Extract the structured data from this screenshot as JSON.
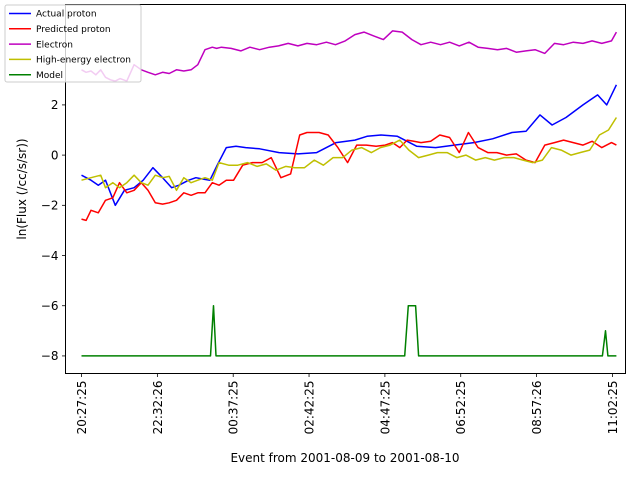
{
  "chart_data": {
    "type": "line",
    "xlabel": "Event from 2001-08-09 to 2001-08-10",
    "ylabel": "ln(Flux (/cc/s/sr))",
    "grid": false,
    "legend_position": "top-left",
    "xlim": [
      "2001-08-09 20:01:00",
      "2001-08-10 11:24:00"
    ],
    "ylim": [
      -8.7,
      6.0
    ],
    "x_ticks": [
      "20:27:25",
      "22:32:26",
      "00:37:25",
      "02:42:25",
      "04:47:25",
      "06:52:25",
      "08:57:26",
      "11:02:25"
    ],
    "y_ticks": [
      "-8",
      "-6",
      "-4",
      "-2",
      "0",
      "2"
    ],
    "series": [
      {
        "name": "Actual proton",
        "color": "#0000ff",
        "x": [
          "2001-08-09 20:27:25",
          "2001-08-09 20:43:00",
          "2001-08-09 20:55:00",
          "2001-08-09 21:07:00",
          "2001-08-09 21:15:00",
          "2001-08-09 21:23:00",
          "2001-08-09 21:38:00",
          "2001-08-09 21:54:00",
          "2001-08-09 22:09:00",
          "2001-08-09 22:25:00",
          "2001-08-09 22:41:00",
          "2001-08-09 22:56:00",
          "2001-08-09 23:08:00",
          "2001-08-09 23:24:00",
          "2001-08-09 23:36:00",
          "2001-08-09 23:47:00",
          "2001-08-09 23:59:00",
          "2001-08-10 00:11:00",
          "2001-08-10 00:26:00",
          "2001-08-10 00:42:00",
          "2001-08-10 00:58:00",
          "2001-08-10 01:21:00",
          "2001-08-10 01:53:00",
          "2001-08-10 02:24:00",
          "2001-08-10 02:55:00",
          "2001-08-10 03:27:00",
          "2001-08-10 03:58:00",
          "2001-08-10 04:18:00",
          "2001-08-10 04:41:00",
          "2001-08-10 05:08:00",
          "2001-08-10 05:40:00",
          "2001-08-10 06:11:00",
          "2001-08-10 06:42:00",
          "2001-08-10 07:14:00",
          "2001-08-10 07:45:00",
          "2001-08-10 08:17:00",
          "2001-08-10 08:40:00",
          "2001-08-10 09:03:00",
          "2001-08-10 09:23:00",
          "2001-08-10 09:46:00",
          "2001-08-10 10:14:00",
          "2001-08-10 10:38:00",
          "2001-08-10 10:53:00",
          "2001-08-10 11:09:00"
        ],
        "values": [
          -0.8,
          -1.0,
          -1.2,
          -1.0,
          -1.5,
          -2.0,
          -1.4,
          -1.3,
          -1.0,
          -0.5,
          -0.9,
          -1.3,
          -1.2,
          -1.0,
          -0.9,
          -0.95,
          -1.0,
          -0.4,
          0.3,
          0.35,
          0.3,
          0.25,
          0.1,
          0.05,
          0.1,
          0.5,
          0.6,
          0.75,
          0.8,
          0.75,
          0.35,
          0.3,
          0.4,
          0.5,
          0.65,
          0.9,
          0.95,
          1.6,
          1.2,
          1.5,
          2.0,
          2.4,
          2.0,
          2.8
        ]
      },
      {
        "name": "Predicted proton",
        "color": "#ff0000",
        "x": [
          "2001-08-09 20:27:25",
          "2001-08-09 20:35:00",
          "2001-08-09 20:43:00",
          "2001-08-09 20:55:00",
          "2001-08-09 21:07:00",
          "2001-08-09 21:19:00",
          "2001-08-09 21:30:00",
          "2001-08-09 21:42:00",
          "2001-08-09 21:54:00",
          "2001-08-09 22:06:00",
          "2001-08-09 22:17:00",
          "2001-08-09 22:29:00",
          "2001-08-09 22:41:00",
          "2001-08-09 22:52:00",
          "2001-08-09 23:04:00",
          "2001-08-09 23:16:00",
          "2001-08-09 23:28:00",
          "2001-08-09 23:39:00",
          "2001-08-09 23:51:00",
          "2001-08-10 00:03:00",
          "2001-08-10 00:14:00",
          "2001-08-10 00:26:00",
          "2001-08-10 00:38:00",
          "2001-08-10 00:53:00",
          "2001-08-10 01:09:00",
          "2001-08-10 01:25:00",
          "2001-08-10 01:40:00",
          "2001-08-10 01:56:00",
          "2001-08-10 02:12:00",
          "2001-08-10 02:27:00",
          "2001-08-10 02:39:00",
          "2001-08-10 02:59:00",
          "2001-08-10 03:14:00",
          "2001-08-10 03:30:00",
          "2001-08-10 03:46:00",
          "2001-08-10 04:01:00",
          "2001-08-10 04:17:00",
          "2001-08-10 04:33:00",
          "2001-08-10 04:48:00",
          "2001-08-10 05:00:00",
          "2001-08-10 05:12:00",
          "2001-08-10 05:24:00",
          "2001-08-10 05:35:00",
          "2001-08-10 05:47:00",
          "2001-08-10 06:03:00",
          "2001-08-10 06:18:00",
          "2001-08-10 06:34:00",
          "2001-08-10 06:50:00",
          "2001-08-10 07:05:00",
          "2001-08-10 07:21:00",
          "2001-08-10 07:37:00",
          "2001-08-10 07:52:00",
          "2001-08-10 08:08:00",
          "2001-08-10 08:24:00",
          "2001-08-10 08:40:00",
          "2001-08-10 08:55:00",
          "2001-08-10 09:11:00",
          "2001-08-10 09:27:00",
          "2001-08-10 09:42:00",
          "2001-08-10 09:58:00",
          "2001-08-10 10:14:00",
          "2001-08-10 10:29:00",
          "2001-08-10 10:45:00",
          "2001-08-10 11:01:00",
          "2001-08-10 11:09:00"
        ],
        "values": [
          -2.55,
          -2.6,
          -2.2,
          -2.3,
          -1.8,
          -1.7,
          -1.1,
          -1.5,
          -1.4,
          -1.1,
          -1.4,
          -1.9,
          -1.95,
          -1.9,
          -1.8,
          -1.5,
          -1.6,
          -1.5,
          -1.5,
          -1.1,
          -1.2,
          -1.0,
          -1.0,
          -0.4,
          -0.3,
          -0.3,
          -0.1,
          -0.9,
          -0.75,
          0.8,
          0.9,
          0.9,
          0.8,
          0.3,
          -0.3,
          0.4,
          0.4,
          0.35,
          0.4,
          0.5,
          0.3,
          0.6,
          0.55,
          0.5,
          0.55,
          0.8,
          0.7,
          0.1,
          0.9,
          0.3,
          0.1,
          0.1,
          0.0,
          0.05,
          -0.2,
          -0.3,
          0.4,
          0.5,
          0.6,
          0.5,
          0.4,
          0.55,
          0.3,
          0.5,
          0.4
        ]
      },
      {
        "name": "Electron",
        "color": "#bf00bf",
        "x": [
          "2001-08-09 20:27:25",
          "2001-08-09 20:35:00",
          "2001-08-09 20:43:00",
          "2001-08-09 20:51:00",
          "2001-08-09 20:59:00",
          "2001-08-09 21:07:00",
          "2001-08-09 21:15:00",
          "2001-08-09 21:23:00",
          "2001-08-09 21:31:00",
          "2001-08-09 21:42:00",
          "2001-08-09 21:54:00",
          "2001-08-09 22:06:00",
          "2001-08-09 22:17:00",
          "2001-08-09 22:29:00",
          "2001-08-09 22:41:00",
          "2001-08-09 22:52:00",
          "2001-08-09 23:04:00",
          "2001-08-09 23:16:00",
          "2001-08-09 23:28:00",
          "2001-08-09 23:39:00",
          "2001-08-09 23:51:00",
          "2001-08-10 00:03:00",
          "2001-08-10 00:10:00",
          "2001-08-10 00:18:00",
          "2001-08-10 00:34:00",
          "2001-08-10 00:50:00",
          "2001-08-10 01:05:00",
          "2001-08-10 01:21:00",
          "2001-08-10 01:37:00",
          "2001-08-10 01:52:00",
          "2001-08-10 02:08:00",
          "2001-08-10 02:24:00",
          "2001-08-10 02:39:00",
          "2001-08-10 02:55:00",
          "2001-08-10 03:11:00",
          "2001-08-10 03:26:00",
          "2001-08-10 03:42:00",
          "2001-08-10 03:58:00",
          "2001-08-10 04:13:00",
          "2001-08-10 04:29:00",
          "2001-08-10 04:45:00",
          "2001-08-10 05:00:00",
          "2001-08-10 05:16:00",
          "2001-08-10 05:32:00",
          "2001-08-10 05:47:00",
          "2001-08-10 06:03:00",
          "2001-08-10 06:19:00",
          "2001-08-10 06:34:00",
          "2001-08-10 06:50:00",
          "2001-08-10 07:06:00",
          "2001-08-10 07:21:00",
          "2001-08-10 07:37:00",
          "2001-08-10 07:53:00",
          "2001-08-10 08:08:00",
          "2001-08-10 08:24:00",
          "2001-08-10 08:40:00",
          "2001-08-10 08:55:00",
          "2001-08-10 09:11:00",
          "2001-08-10 09:27:00",
          "2001-08-10 09:42:00",
          "2001-08-10 09:58:00",
          "2001-08-10 10:14:00",
          "2001-08-10 10:29:00",
          "2001-08-10 10:45:00",
          "2001-08-10 11:01:00",
          "2001-08-10 11:09:00"
        ],
        "values": [
          3.4,
          3.3,
          3.35,
          3.2,
          3.4,
          3.1,
          3.0,
          2.95,
          3.05,
          2.95,
          3.6,
          3.4,
          3.3,
          3.2,
          3.3,
          3.25,
          3.4,
          3.35,
          3.4,
          3.6,
          4.2,
          4.3,
          4.25,
          4.3,
          4.25,
          4.15,
          4.3,
          4.2,
          4.3,
          4.35,
          4.45,
          4.35,
          4.45,
          4.4,
          4.5,
          4.4,
          4.55,
          4.8,
          4.9,
          4.75,
          4.6,
          4.95,
          4.9,
          4.6,
          4.4,
          4.5,
          4.4,
          4.5,
          4.35,
          4.5,
          4.3,
          4.25,
          4.2,
          4.25,
          4.1,
          4.15,
          4.2,
          4.05,
          4.45,
          4.4,
          4.5,
          4.45,
          4.55,
          4.45,
          4.55,
          4.9
        ]
      },
      {
        "name": "High-energy electron",
        "color": "#bfbf00",
        "x": [
          "2001-08-09 20:27:25",
          "2001-08-09 20:43:00",
          "2001-08-09 20:59:00",
          "2001-08-09 21:07:00",
          "2001-08-09 21:19:00",
          "2001-08-09 21:30:00",
          "2001-08-09 21:42:00",
          "2001-08-09 21:54:00",
          "2001-08-09 22:06:00",
          "2001-08-09 22:17:00",
          "2001-08-09 22:29:00",
          "2001-08-09 22:41:00",
          "2001-08-09 22:52:00",
          "2001-08-09 23:04:00",
          "2001-08-09 23:16:00",
          "2001-08-09 23:28:00",
          "2001-08-09 23:39:00",
          "2001-08-09 23:51:00",
          "2001-08-10 00:03:00",
          "2001-08-10 00:14:00",
          "2001-08-10 00:30:00",
          "2001-08-10 00:45:00",
          "2001-08-10 01:01:00",
          "2001-08-10 01:17:00",
          "2001-08-10 01:32:00",
          "2001-08-10 01:48:00",
          "2001-08-10 02:04:00",
          "2001-08-10 02:19:00",
          "2001-08-10 02:35:00",
          "2001-08-10 02:51:00",
          "2001-08-10 03:06:00",
          "2001-08-10 03:22:00",
          "2001-08-10 03:38:00",
          "2001-08-10 03:53:00",
          "2001-08-10 04:09:00",
          "2001-08-10 04:25:00",
          "2001-08-10 04:40:00",
          "2001-08-10 04:56:00",
          "2001-08-10 05:12:00",
          "2001-08-10 05:27:00",
          "2001-08-10 05:43:00",
          "2001-08-10 05:59:00",
          "2001-08-10 06:14:00",
          "2001-08-10 06:30:00",
          "2001-08-10 06:46:00",
          "2001-08-10 07:01:00",
          "2001-08-10 07:17:00",
          "2001-08-10 07:33:00",
          "2001-08-10 07:48:00",
          "2001-08-10 08:04:00",
          "2001-08-10 08:20:00",
          "2001-08-10 08:35:00",
          "2001-08-10 08:51:00",
          "2001-08-10 09:07:00",
          "2001-08-10 09:22:00",
          "2001-08-10 09:38:00",
          "2001-08-10 09:54:00",
          "2001-08-10 10:09:00",
          "2001-08-10 10:25:00",
          "2001-08-10 10:41:00",
          "2001-08-10 10:56:00",
          "2001-08-10 11:09:00"
        ],
        "values": [
          -1.0,
          -0.9,
          -0.8,
          -1.3,
          -1.1,
          -1.3,
          -1.1,
          -0.8,
          -1.1,
          -1.2,
          -0.8,
          -0.9,
          -0.85,
          -1.4,
          -0.9,
          -1.1,
          -1.0,
          -0.9,
          -1.0,
          -0.3,
          -0.4,
          -0.4,
          -0.3,
          -0.45,
          -0.35,
          -0.6,
          -0.45,
          -0.5,
          -0.5,
          -0.2,
          -0.4,
          -0.1,
          -0.1,
          0.2,
          0.3,
          0.1,
          0.3,
          0.4,
          0.6,
          0.2,
          -0.1,
          0.0,
          0.1,
          0.1,
          -0.1,
          0.0,
          -0.2,
          -0.1,
          -0.2,
          -0.1,
          -0.1,
          -0.2,
          -0.3,
          -0.2,
          0.3,
          0.2,
          0.0,
          0.1,
          0.2,
          0.8,
          1.0,
          1.5
        ]
      },
      {
        "name": "Model",
        "color": "#008000",
        "x": [
          "2001-08-09 20:27:25",
          "2001-08-10 00:00:00",
          "2001-08-10 00:05:00",
          "2001-08-10 00:09:00",
          "2001-08-10 05:20:00",
          "2001-08-10 05:26:00",
          "2001-08-10 05:38:00",
          "2001-08-10 05:43:00",
          "2001-08-10 10:46:00",
          "2001-08-10 10:51:00",
          "2001-08-10 10:55:00",
          "2001-08-10 11:09:00"
        ],
        "values": [
          -8.0,
          -8.0,
          -6.0,
          -8.0,
          -8.0,
          -6.0,
          -6.0,
          -8.0,
          -8.0,
          -7.0,
          -8.0,
          -8.0
        ]
      }
    ]
  }
}
